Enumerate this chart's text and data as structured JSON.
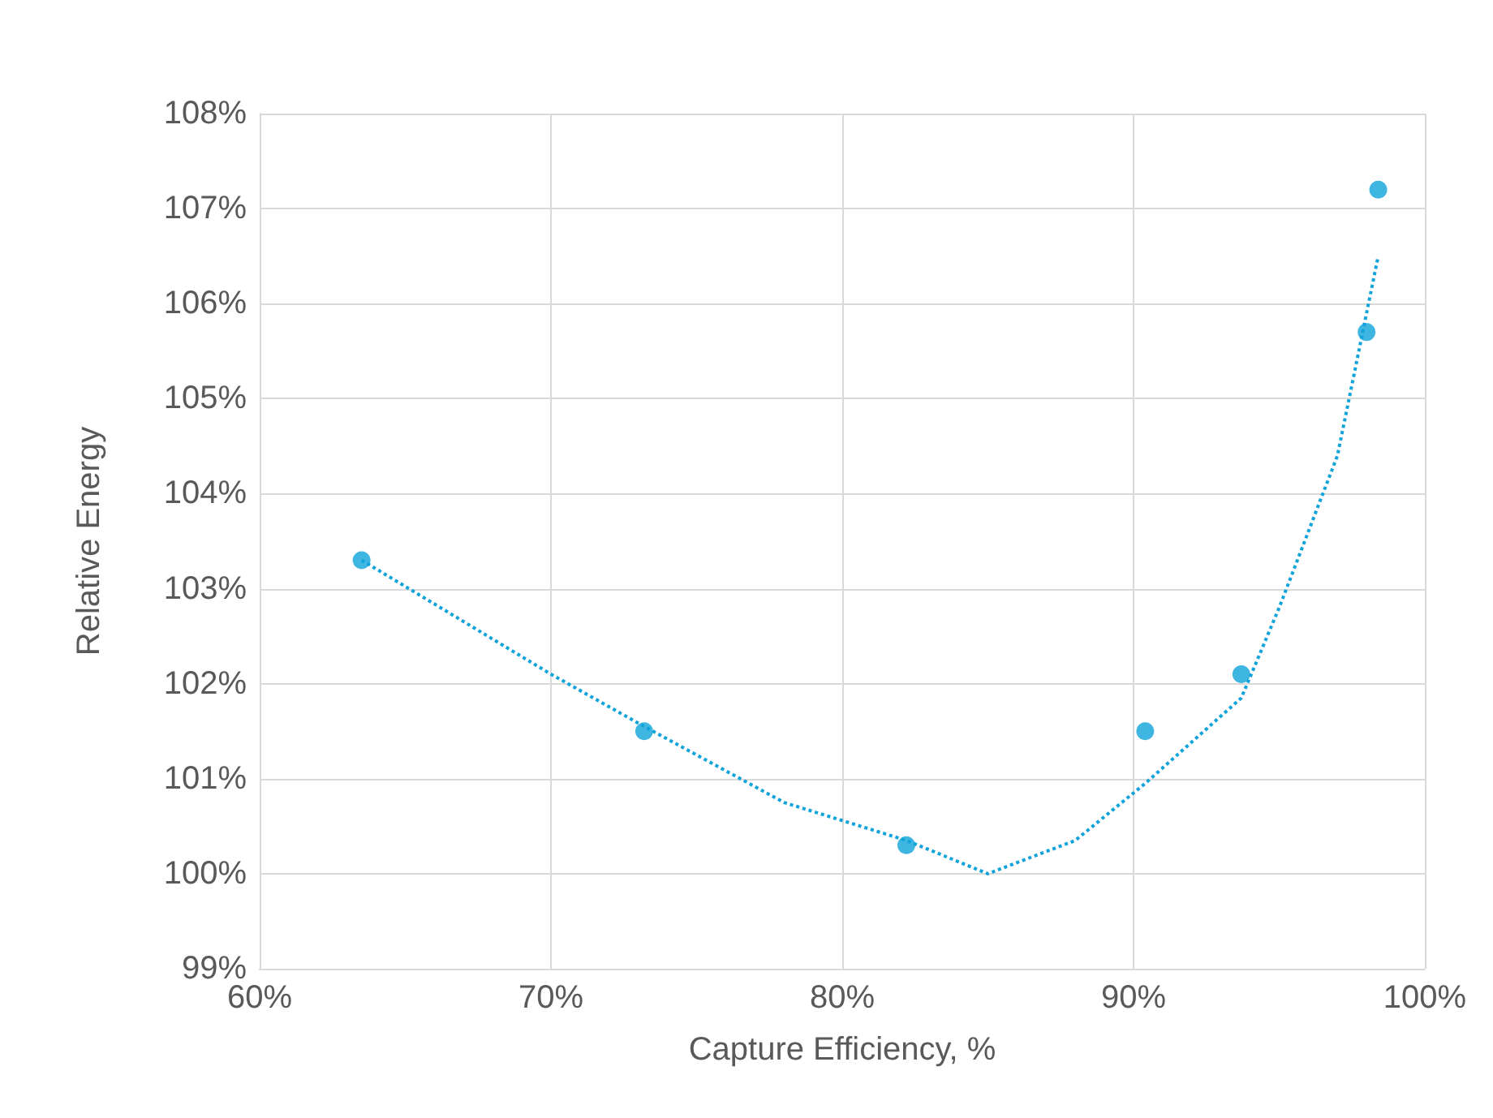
{
  "chart_data": {
    "type": "scatter",
    "xlabel": "Capture Efficiency, %",
    "ylabel": "Relative Energy",
    "xlim": [
      60,
      100
    ],
    "xticks": [
      {
        "value": 60,
        "label": "60%"
      },
      {
        "value": 70,
        "label": "70%"
      },
      {
        "value": 80,
        "label": "80%"
      },
      {
        "value": 90,
        "label": "90%"
      },
      {
        "value": 100,
        "label": "100%"
      }
    ],
    "ylim": [
      99,
      108
    ],
    "yticks": [
      {
        "value": 99,
        "label": "99%"
      },
      {
        "value": 100,
        "label": "100%"
      },
      {
        "value": 101,
        "label": "101%"
      },
      {
        "value": 102,
        "label": "102%"
      },
      {
        "value": 103,
        "label": "103%"
      },
      {
        "value": 104,
        "label": "104%"
      },
      {
        "value": 105,
        "label": "105%"
      },
      {
        "value": 106,
        "label": "106%"
      },
      {
        "value": 107,
        "label": "107%"
      },
      {
        "value": 108,
        "label": "108%"
      }
    ],
    "grid": true,
    "series": [
      {
        "marker": "circle",
        "color": "#0fa3da",
        "x": [
          63.5,
          73.2,
          82.2,
          90.4,
          93.7,
          98.0,
          98.4
        ],
        "values": [
          103.3,
          101.5,
          100.3,
          101.5,
          102.1,
          105.7,
          107.2
        ]
      },
      {
        "type": "line",
        "marker": "none",
        "line_style": "dotted",
        "color": "#0fa3da",
        "x": [
          63.5,
          70,
          73.2,
          78,
          82.2,
          85,
          88,
          90.4,
          93.7,
          95,
          97,
          98.4
        ],
        "values": [
          103.3,
          102.1,
          101.55,
          100.75,
          100.35,
          100.0,
          100.35,
          100.95,
          101.85,
          102.8,
          104.4,
          106.5
        ]
      }
    ]
  }
}
